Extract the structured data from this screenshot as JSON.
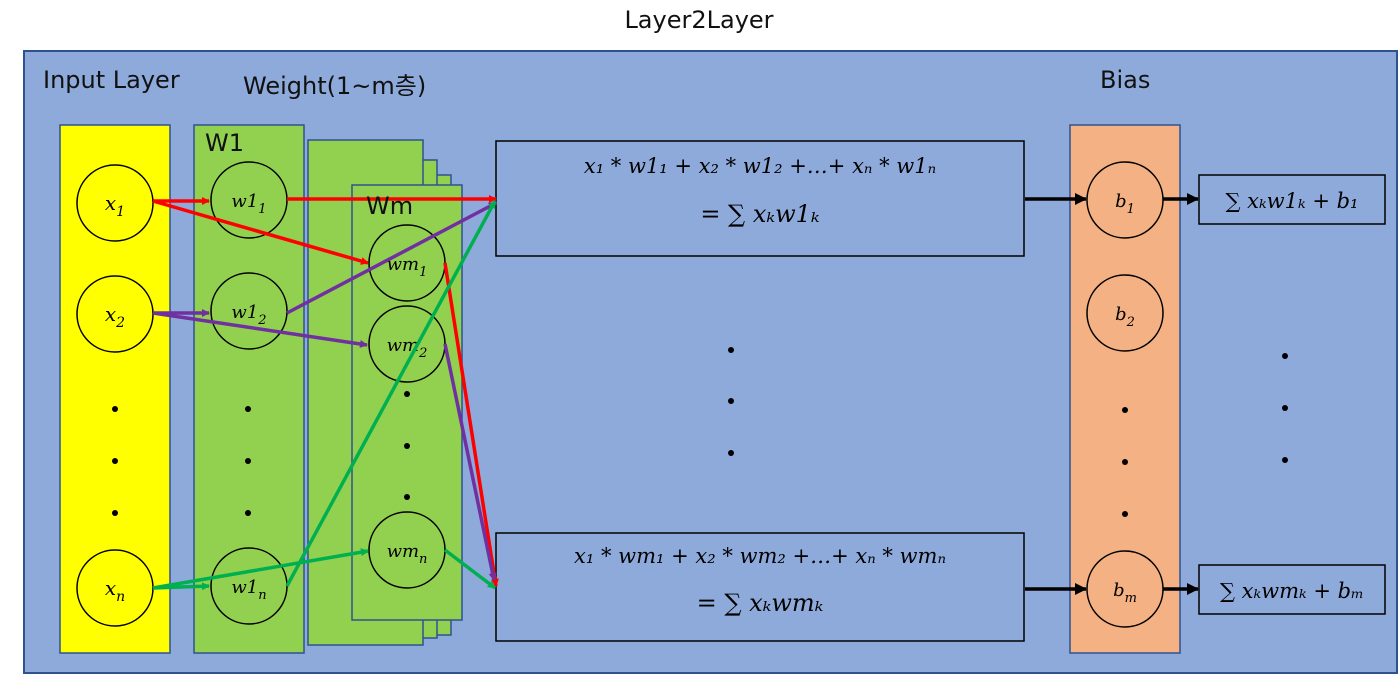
{
  "title": "Layer2Layer",
  "labels": {
    "input_layer": "Input Layer",
    "weight": "Weight(1~m층)",
    "bias": "Bias",
    "w1_stack": "W1",
    "wm_stack": "Wm"
  },
  "input_nodes": [
    {
      "base": "x",
      "sub": "1"
    },
    {
      "base": "x",
      "sub": "2"
    },
    {
      "base": "x",
      "sub": "n"
    }
  ],
  "w1_nodes": [
    {
      "base": "w1",
      "sub": "1"
    },
    {
      "base": "w1",
      "sub": "2"
    },
    {
      "base": "w1",
      "sub": "n"
    }
  ],
  "wm_nodes": [
    {
      "base": "wm",
      "sub": "1"
    },
    {
      "base": "wm",
      "sub": "2"
    },
    {
      "base": "wm",
      "sub": "n"
    }
  ],
  "bias_nodes": [
    {
      "base": "b",
      "sub": "1"
    },
    {
      "base": "b",
      "sub": "2"
    },
    {
      "base": "b",
      "sub": "m"
    }
  ],
  "sum_boxes": [
    {
      "line1": "x₁ * w1₁ + x₂ * w1₂ +…+ xₙ * w1ₙ",
      "line2": "= ∑ xₖw1ₖ"
    },
    {
      "line1": "x₁ * wm₁ + x₂ * wm₂ +…+ xₙ * wmₙ",
      "line2": "= ∑ xₖwmₖ"
    }
  ],
  "output_boxes": [
    {
      "text": "∑ xₖw1ₖ + b₁"
    },
    {
      "text": "∑ xₖwmₖ + bₘ"
    }
  ],
  "colors": {
    "panel": "#8eaadb",
    "panel_border": "#2f528f",
    "input_layer": "#ffff00",
    "weight_layer": "#92d050",
    "bias_layer": "#f4b183",
    "edge_x1": "#ff0000",
    "edge_x2": "#7030a0",
    "edge_xn": "#00b050",
    "edge_out": "#000000"
  }
}
